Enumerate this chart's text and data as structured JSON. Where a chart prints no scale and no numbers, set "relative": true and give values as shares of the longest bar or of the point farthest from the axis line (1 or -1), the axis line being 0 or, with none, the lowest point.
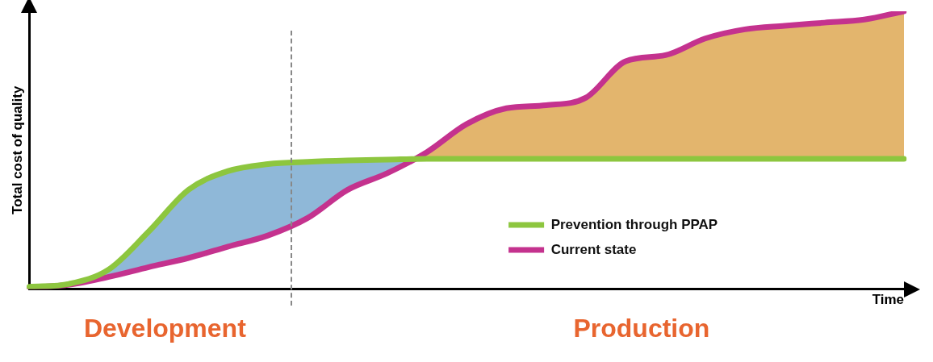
{
  "chart_data": {
    "type": "line",
    "relative": true,
    "xlabel": "Time",
    "ylabel": "Total cost of quality",
    "categories": [
      null,
      null,
      null,
      null,
      null,
      null,
      null,
      null,
      null,
      null,
      null,
      null,
      null,
      null,
      null,
      null,
      null,
      null,
      null,
      null,
      null,
      null,
      null
    ],
    "series": [
      {
        "name": "Prevention through PPAP",
        "color": "#8dc63f",
        "values": [
          0.008,
          0.019,
          0.071,
          0.207,
          0.357,
          0.425,
          0.45,
          0.458,
          0.463,
          0.466,
          0.469,
          0.469,
          0.469,
          0.469,
          0.469,
          0.469,
          0.469,
          0.469,
          0.469,
          0.469,
          0.469,
          0.469,
          0.469
        ]
      },
      {
        "name": "Current state",
        "color": "#c4328e",
        "values": [
          0.005,
          0.016,
          0.044,
          0.079,
          0.112,
          0.153,
          0.193,
          0.256,
          0.357,
          0.417,
          0.493,
          0.594,
          0.651,
          0.662,
          0.689,
          0.82,
          0.842,
          0.902,
          0.935,
          0.948,
          0.959,
          0.97,
          1
        ]
      }
    ],
    "legend": "bottom right",
    "annotations": [
      "Development",
      "Production"
    ]
  }
}
